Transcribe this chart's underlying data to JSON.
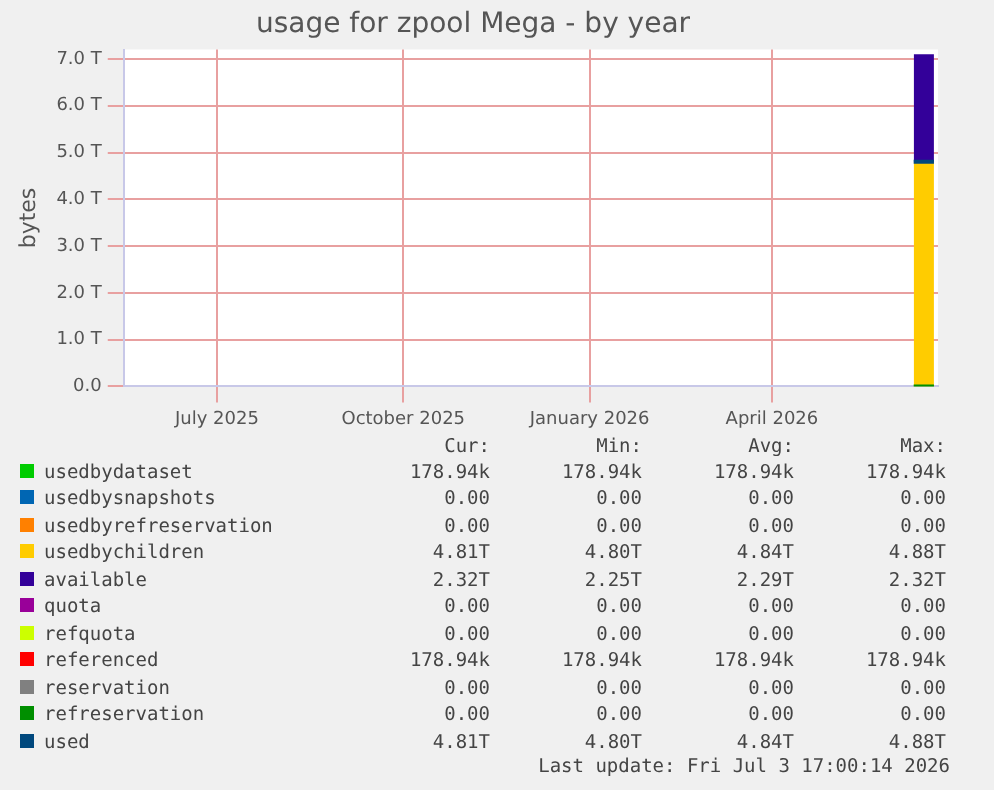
{
  "chart_data": {
    "type": "area",
    "title": "usage for zpool Mega - by year",
    "ylabel": "bytes",
    "stacked": true,
    "x": [
      "2026-06-10",
      "2026-06-20"
    ],
    "xlim": [
      "2025-05-16",
      "2026-06-22"
    ],
    "xticks": [
      {
        "value": "2025-07-01",
        "label": "July 2025"
      },
      {
        "value": "2025-10-01",
        "label": "October 2025"
      },
      {
        "value": "2026-01-01",
        "label": "January 2026"
      },
      {
        "value": "2026-04-01",
        "label": "April 2026"
      }
    ],
    "ylim": [
      0,
      7.2
    ],
    "yticks": [
      {
        "value": 0,
        "label": "0.0"
      },
      {
        "value": 1,
        "label": "1.0 T"
      },
      {
        "value": 2,
        "label": "2.0 T"
      },
      {
        "value": 3,
        "label": "3.0 T"
      },
      {
        "value": 4,
        "label": "4.0 T"
      },
      {
        "value": 5,
        "label": "5.0 T"
      },
      {
        "value": 6,
        "label": "6.0 T"
      },
      {
        "value": 7,
        "label": "7.0 T"
      }
    ],
    "grid": true,
    "legend": "bottom",
    "series": [
      {
        "name": "usedbydataset",
        "color": "#00cc00",
        "values": [
          null,
          null
        ]
      },
      {
        "name": "usedbysnapshots",
        "color": "#0066b3",
        "values": [
          null,
          null
        ]
      },
      {
        "name": "usedbyrefreservation",
        "color": "#ff8000",
        "values": [
          null,
          null
        ]
      },
      {
        "name": "usedbychildren",
        "color": "#ffcc00",
        "values": [
          4.8,
          4.8
        ]
      },
      {
        "name": "available",
        "color": "#330099",
        "values": [
          2.3,
          2.3
        ]
      },
      {
        "name": "quota",
        "type": "line",
        "color": "#990099",
        "values": [
          null,
          null
        ]
      },
      {
        "name": "refquota",
        "type": "line",
        "color": "#ccff00",
        "values": [
          null,
          null
        ]
      },
      {
        "name": "referenced",
        "type": "line",
        "color": "#ff0000",
        "values": [
          null,
          null
        ]
      },
      {
        "name": "reservation",
        "type": "line",
        "color": "#808080",
        "values": [
          null,
          null
        ]
      },
      {
        "name": "refreservation",
        "type": "line",
        "color": "#008f00",
        "values": [
          0,
          0
        ]
      },
      {
        "name": "used",
        "type": "line",
        "color": "#00487d",
        "values": [
          4.8,
          4.8
        ]
      }
    ],
    "annotations": [
      "Cur:",
      "Min:",
      "Avg:",
      "Max:",
      "178.94k",
      "178.94k",
      "178.94k",
      "178.94k",
      "0.00",
      "0.00",
      "0.00",
      "0.00",
      "0.00",
      "0.00",
      "0.00",
      "0.00",
      "4.81T",
      "4.80T",
      "4.84T",
      "4.88T",
      "2.32T",
      "2.25T",
      "2.29T",
      "2.32T",
      "0.00",
      "0.00",
      "0.00",
      "0.00",
      "0.00",
      "0.00",
      "0.00",
      "0.00",
      "178.94k",
      "178.94k",
      "178.94k",
      "178.94k",
      "0.00",
      "0.00",
      "0.00",
      "0.00",
      "0.00",
      "0.00",
      "0.00",
      "0.00",
      "4.81T",
      "4.80T",
      "4.84T",
      "4.88T",
      "Last update: Fri Jul  3 17:00:14 2026"
    ]
  }
}
